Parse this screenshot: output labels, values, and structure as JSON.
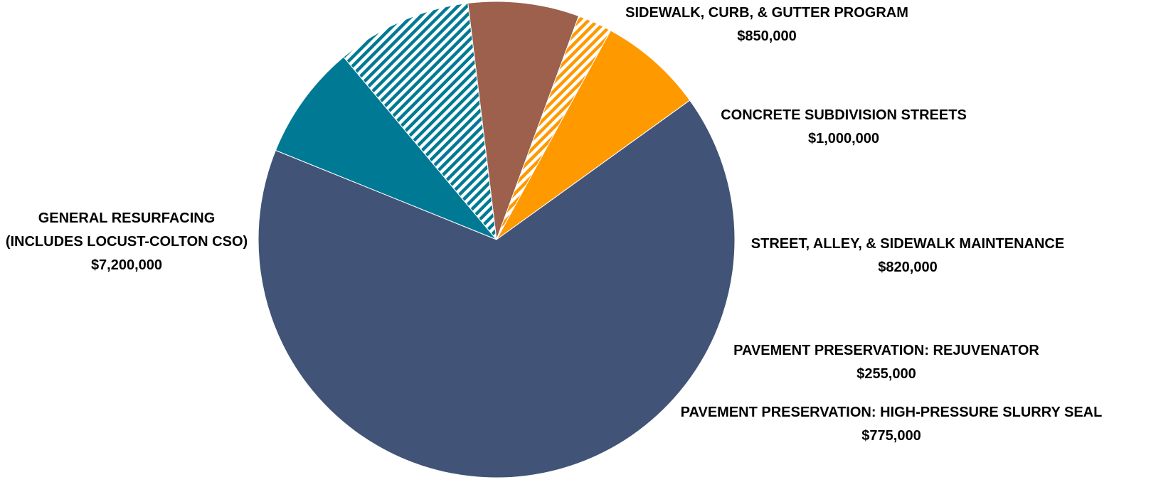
{
  "chart_data": {
    "type": "pie",
    "title": "",
    "slices": [
      {
        "label": "SIDEWALK, CURB, & GUTTER PROGRAM",
        "value_label": "$850,000",
        "value": 850000,
        "color": "#007a94",
        "pattern": "solid"
      },
      {
        "label": "CONCRETE SUBDIVISION STREETS",
        "value_label": "$1,000,000",
        "value": 1000000,
        "color": "#007a94",
        "pattern": "diagonal-stripes"
      },
      {
        "label": "STREET, ALLEY, & SIDEWALK MAINTENANCE",
        "value_label": "$820,000",
        "value": 820000,
        "color": "#9c604c",
        "pattern": "solid"
      },
      {
        "label": "PAVEMENT PRESERVATION: REJUVENATOR",
        "value_label": "$255,000",
        "value": 255000,
        "color": "#ff9900",
        "pattern": "diagonal-stripes"
      },
      {
        "label": "PAVEMENT PRESERVATION: HIGH-PRESSURE SLURRY SEAL",
        "value_label": "$775,000",
        "value": 775000,
        "color": "#ff9900",
        "pattern": "solid"
      },
      {
        "label_lines": [
          "GENERAL RESURFACING",
          "(INCLUDES LOCUST-COLTON CSO)"
        ],
        "value_label": "$7,200,000",
        "value": 7200000,
        "color": "#415477",
        "pattern": "solid"
      }
    ]
  }
}
